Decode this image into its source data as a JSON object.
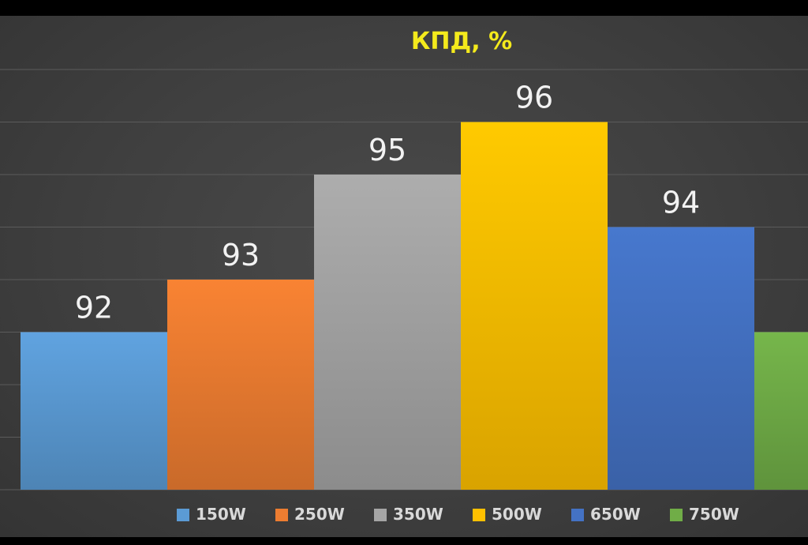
{
  "chart_data": {
    "type": "bar",
    "title": "КПД, %",
    "xlabel": "",
    "ylabel": "",
    "ylim": [
      89,
      97
    ],
    "grid": true,
    "legend_position": "bottom",
    "categories": [
      "150W",
      "250W",
      "350W",
      "500W",
      "650W",
      "750W"
    ],
    "values": [
      92,
      93,
      95,
      96,
      94,
      92
    ],
    "data_labels": [
      "92",
      "93",
      "95",
      "96",
      "94",
      ""
    ],
    "colors": [
      "#5b9bd5",
      "#ed7d31",
      "#a5a5a5",
      "#ffc000",
      "#4472c4",
      "#70ad47"
    ],
    "title_color": "#f4ea1c",
    "background_color": "#404040"
  }
}
